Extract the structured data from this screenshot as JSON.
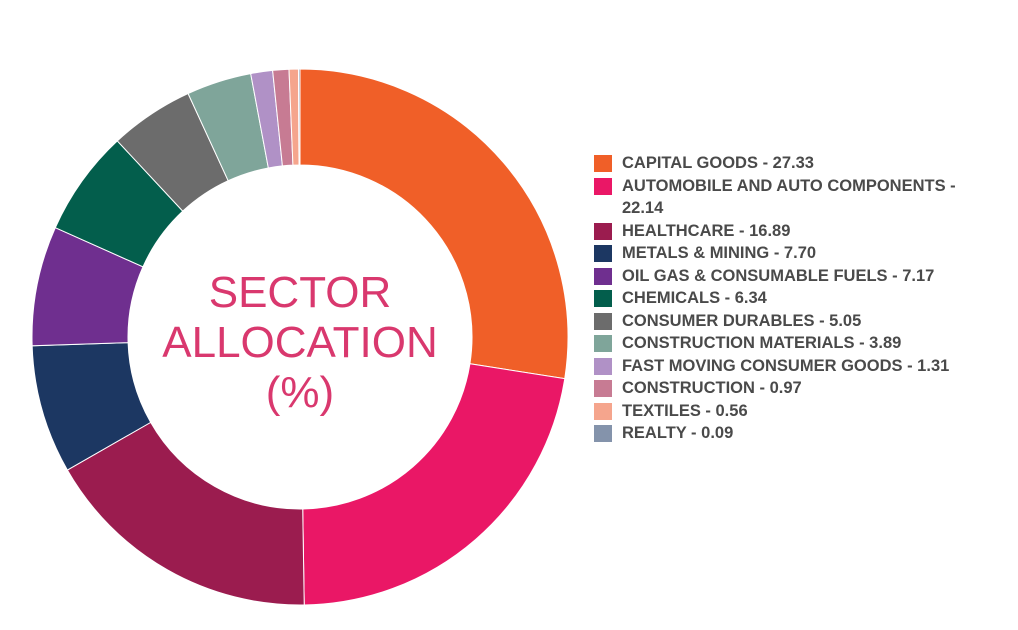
{
  "chart_data": {
    "type": "pie",
    "donut": true,
    "center_label": [
      "SECTOR",
      "ALLOCATION",
      "(%)"
    ],
    "legend_placement": "right",
    "slices": [
      {
        "name": "CAPITAL GOODS",
        "value": 27.33,
        "label": "CAPITAL GOODS - 27.33",
        "color": "#f05f28"
      },
      {
        "name": "AUTOMOBILE AND AUTO COMPONENTS",
        "value": 22.14,
        "label": "AUTOMOBILE AND AUTO COMPONENTS - 22.14",
        "color": "#ea1766"
      },
      {
        "name": "HEALTHCARE",
        "value": 16.89,
        "label": "HEALTHCARE - 16.89",
        "color": "#9b1c4f"
      },
      {
        "name": "METALS & MINING",
        "value": 7.7,
        "label": "METALS & MINING - 7.70",
        "color": "#1c3762"
      },
      {
        "name": "OIL GAS & CONSUMABLE FUELS",
        "value": 7.17,
        "label": "OIL GAS & CONSUMABLE FUELS - 7.17",
        "color": "#6f2f8f"
      },
      {
        "name": "CHEMICALS",
        "value": 6.34,
        "label": "CHEMICALS - 6.34",
        "color": "#035e4c"
      },
      {
        "name": "CONSUMER DURABLES",
        "value": 5.05,
        "label": "CONSUMER DURABLES - 5.05",
        "color": "#6c6c6c"
      },
      {
        "name": "CONSTRUCTION MATERIALS",
        "value": 3.89,
        "label": "CONSTRUCTION MATERIALS - 3.89",
        "color": "#7fa59a"
      },
      {
        "name": "FAST MOVING CONSUMER GOODS",
        "value": 1.31,
        "label": "FAST MOVING CONSUMER GOODS - 1.31",
        "color": "#b091c6"
      },
      {
        "name": "CONSTRUCTION",
        "value": 0.97,
        "label": "CONSTRUCTION - 0.97",
        "color": "#c77b93"
      },
      {
        "name": "TEXTILES",
        "value": 0.56,
        "label": "TEXTILES - 0.56",
        "color": "#f5a58d"
      },
      {
        "name": "REALTY",
        "value": 0.09,
        "label": "REALTY - 0.09",
        "color": "#8493ab"
      }
    ]
  }
}
